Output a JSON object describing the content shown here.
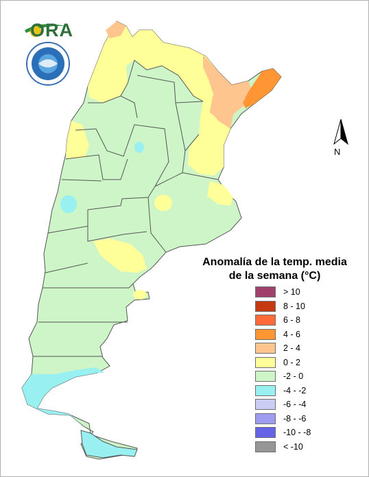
{
  "logo": {
    "text": "ORA",
    "icon": "ora-logo-icon"
  },
  "seal": {
    "icon": "smn-seal-icon"
  },
  "north_arrow": {
    "label": "N",
    "icon": "north-arrow-icon"
  },
  "legend": {
    "title_line1": "Anomalía de la temp. media",
    "title_line2": "de la semana (°C)",
    "items": [
      {
        "label": "> 10",
        "color": "#a0416b"
      },
      {
        "label": "8 - 10",
        "color": "#c63a12"
      },
      {
        "label": "6 - 8",
        "color": "#ff6a3b"
      },
      {
        "label": "4 - 6",
        "color": "#ff9633"
      },
      {
        "label": "2 - 4",
        "color": "#ffc58e"
      },
      {
        "label": "0 - 2",
        "color": "#ffff99"
      },
      {
        "label": "-2 - 0",
        "color": "#cdf5c8"
      },
      {
        "label": "-4 - -2",
        "color": "#99f0f0"
      },
      {
        "label": "-6 - -4",
        "color": "#cccdf4"
      },
      {
        "label": "-8 - -6",
        "color": "#9d9cf0"
      },
      {
        "label": "-10 - -8",
        "color": "#6563e6"
      },
      {
        "label": "< -10",
        "color": "#969696"
      }
    ]
  }
}
